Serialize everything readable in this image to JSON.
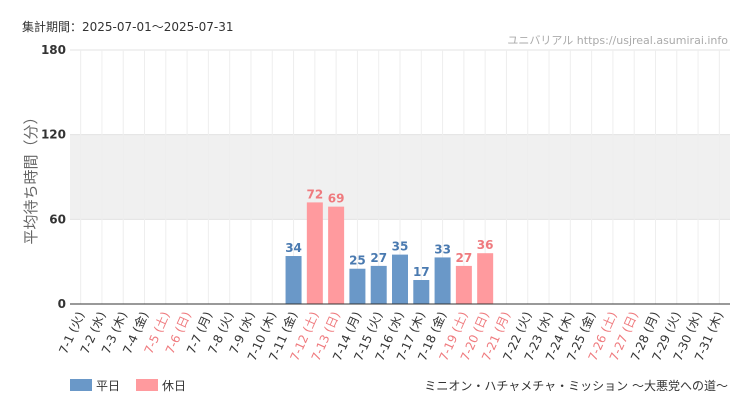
{
  "header": {
    "period": "集計期間：2025-07-01〜2025-07-31",
    "credit": "ユニバリアル  https://usjreal.asumirai.info"
  },
  "footer": {
    "subtitle": "ミニオン・ハチャメチャ・ミッション 〜大悪党への道〜"
  },
  "colors": {
    "weekday": "#6a98c8",
    "holiday": "#ff9a9e",
    "weekday_label": "#4a7ab0",
    "holiday_label": "#ef7a7e",
    "weekday_tick": "#333333",
    "holiday_tick": "#ef7a7e",
    "band": "#f0f0f0"
  },
  "chart_data": {
    "type": "bar",
    "ylabel": "平均待ち時間（分）",
    "ylim": [
      0,
      180
    ],
    "yticks": [
      0,
      60,
      120,
      180
    ],
    "grid": true,
    "highlight_band": [
      60,
      120
    ],
    "legend_position": "bottom-left",
    "categories": [
      "7-1 (火)",
      "7-2 (水)",
      "7-3 (木)",
      "7-4 (金)",
      "7-5 (土)",
      "7-6 (日)",
      "7-7 (月)",
      "7-8 (火)",
      "7-9 (水)",
      "7-10 (木)",
      "7-11 (金)",
      "7-12 (土)",
      "7-13 (日)",
      "7-14 (月)",
      "7-15 (火)",
      "7-16 (水)",
      "7-17 (木)",
      "7-18 (金)",
      "7-19 (土)",
      "7-20 (日)",
      "7-21 (月)",
      "7-22 (火)",
      "7-23 (水)",
      "7-24 (木)",
      "7-25 (金)",
      "7-26 (土)",
      "7-27 (日)",
      "7-28 (月)",
      "7-29 (火)",
      "7-30 (水)",
      "7-31 (木)"
    ],
    "day_type": [
      "weekday",
      "weekday",
      "weekday",
      "weekday",
      "holiday",
      "holiday",
      "weekday",
      "weekday",
      "weekday",
      "weekday",
      "weekday",
      "holiday",
      "holiday",
      "weekday",
      "weekday",
      "weekday",
      "weekday",
      "weekday",
      "holiday",
      "holiday",
      "holiday",
      "weekday",
      "weekday",
      "weekday",
      "weekday",
      "holiday",
      "holiday",
      "weekday",
      "weekday",
      "weekday",
      "weekday"
    ],
    "series": [
      {
        "name": "平日",
        "key": "weekday"
      },
      {
        "name": "休日",
        "key": "holiday"
      }
    ],
    "values": [
      null,
      null,
      null,
      null,
      null,
      null,
      null,
      null,
      null,
      null,
      34,
      72,
      69,
      25,
      27,
      35,
      17,
      33,
      27,
      36,
      null,
      null,
      null,
      null,
      null,
      null,
      null,
      null,
      null,
      null,
      null
    ]
  }
}
